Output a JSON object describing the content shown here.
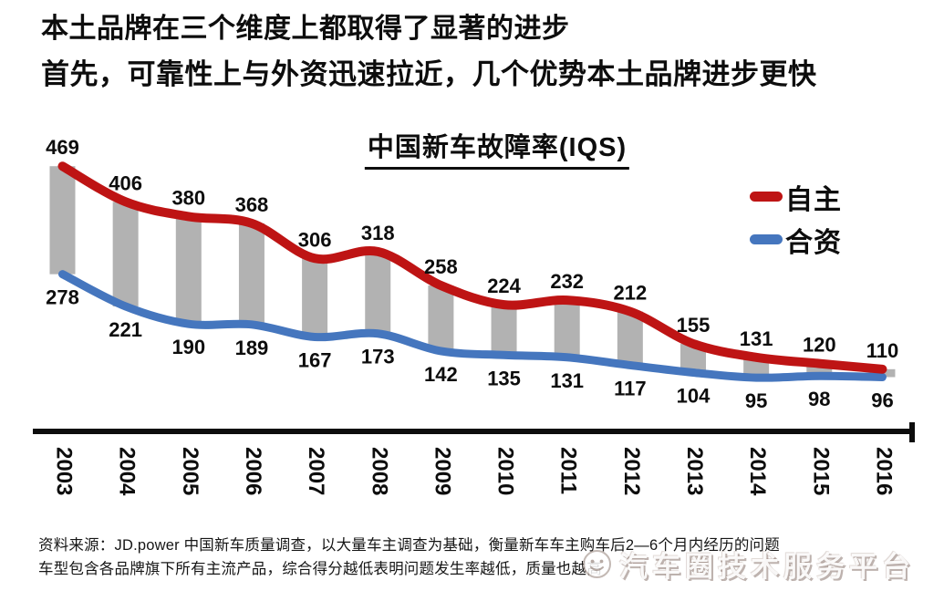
{
  "heading": {
    "line1": "本土品牌在三个维度上都取得了显著的进步",
    "line2_accent": "首先",
    "line2_rest": "，可靠性上与外资迅速拉近，几个优势本土品牌进步更快"
  },
  "chart_data": {
    "type": "line",
    "title": "中国新车故障率(IQS)",
    "categories": [
      "2003",
      "2004",
      "2005",
      "2006",
      "2007",
      "2008",
      "2009",
      "2010",
      "2011",
      "2012",
      "2013",
      "2014",
      "2015",
      "2016"
    ],
    "series": [
      {
        "name": "自主",
        "color": "#BE1414",
        "values": [
          469,
          406,
          380,
          368,
          306,
          318,
          258,
          224,
          232,
          212,
          155,
          131,
          120,
          110
        ]
      },
      {
        "name": "合资",
        "color": "#4576BE",
        "values": [
          278,
          221,
          190,
          189,
          167,
          173,
          142,
          135,
          131,
          117,
          104,
          95,
          98,
          96
        ]
      }
    ],
    "connector_bars": {
      "present": true,
      "color": "#B2B2B2"
    },
    "legend_position": "right",
    "ylim": [
      0,
      500
    ],
    "grid": false,
    "value_labels": "all points labeled"
  },
  "footer": {
    "line1": "资料来源：JD.power 中国新车质量调查，以大量车主调查为基础，衡量新车车主购车后2—6个月内经历的问题",
    "line2": "车型包含各品牌旗下所有主流产品，综合得分越低表明问题发生率越低，质量也越高"
  },
  "watermark": {
    "text": "汽车圈技术服务平台",
    "icon": "smiley-icon"
  },
  "colors": {
    "accent_red": "#C01414",
    "line_red": "#BE1414",
    "line_blue": "#4576BE",
    "bar_gray": "#B2B2B2",
    "axis_black": "#0d0d0d"
  }
}
